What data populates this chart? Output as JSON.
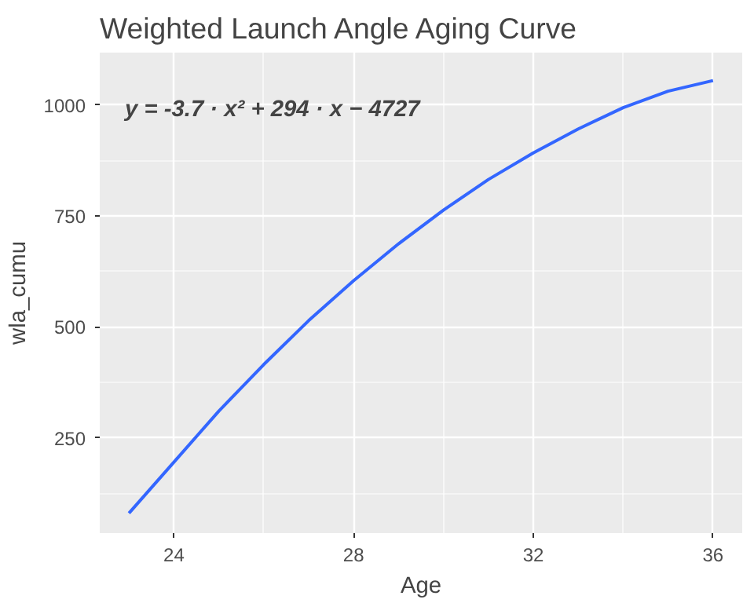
{
  "chart_data": {
    "type": "line",
    "title": "Weighted Launch Angle Aging Curve",
    "xlabel": "Age",
    "ylabel": "wla_cumu",
    "x": [
      23,
      24,
      25,
      26,
      27,
      28,
      29,
      30,
      31,
      32,
      33,
      34,
      35,
      36
    ],
    "series": [
      {
        "color": "#3366ff",
        "values": [
          80,
          195,
          310,
          415,
          514,
          604,
          687,
          763,
          832,
          892,
          946,
          994,
          1031,
          1055
        ]
      }
    ],
    "xlim": [
      22.35,
      36.65
    ],
    "ylim": [
      35,
      1118
    ],
    "xticks": [
      24,
      28,
      32,
      36
    ],
    "yticks": [
      250,
      500,
      750,
      1000
    ],
    "grid": true,
    "marker": "none",
    "line_style": "solid",
    "annotations": [
      "y = -3.7 · x² + 294 · x − 4727"
    ]
  }
}
